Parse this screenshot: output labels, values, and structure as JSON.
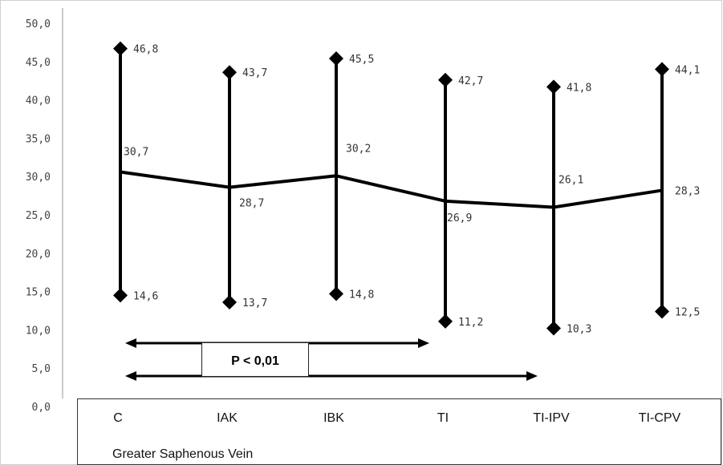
{
  "chart_data": {
    "type": "line",
    "categories": [
      "C",
      "IAK",
      "IBK",
      "TI",
      "TI-IPV",
      "TI-CPV"
    ],
    "mean": [
      30.7,
      28.7,
      30.2,
      26.9,
      26.1,
      28.3
    ],
    "max": [
      46.8,
      43.7,
      45.5,
      42.7,
      41.8,
      44.1
    ],
    "min": [
      14.6,
      13.7,
      14.8,
      11.2,
      10.3,
      12.5
    ],
    "mean_labels": [
      "30,7",
      "28,7",
      "30,2",
      "26,9",
      "26,1",
      "28,3"
    ],
    "max_labels": [
      "46,8",
      "43,7",
      "45,5",
      "42,7",
      "41,8",
      "44,1"
    ],
    "min_labels": [
      "14,6",
      "13,7",
      "14,8",
      "11,2",
      "10,3",
      "12,5"
    ],
    "ylim": [
      0,
      50
    ],
    "yticks": [
      "0,0",
      "5,0",
      "10,0",
      "15,0",
      "20,0",
      "25,0",
      "30,0",
      "35,0",
      "40,0",
      "45,0",
      "50,0"
    ],
    "xlabel": "Greater Saphenous Vein",
    "grid": false,
    "annotation": {
      "text": "P < 0,01",
      "arrows": [
        {
          "from": "C",
          "to": "TI"
        },
        {
          "from": "C",
          "to": "TI-IPV"
        }
      ]
    }
  }
}
